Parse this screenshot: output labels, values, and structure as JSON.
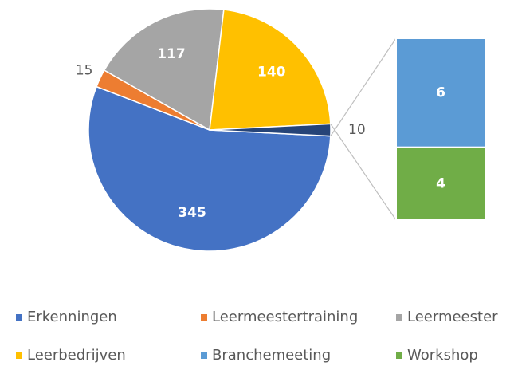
{
  "chart_data": {
    "type": "pie",
    "categories": [
      "Erkenningen",
      "Leermeestertraining",
      "Leermeester",
      "Leerbedrijven",
      null
    ],
    "values": [
      345,
      15,
      117,
      140,
      10
    ],
    "colors": [
      "#4472c4",
      "#ed7d31",
      "#a5a5a5",
      "#ffc000",
      "#264478"
    ],
    "breakdown": {
      "categories": [
        "Branchemeeting",
        "Workshop"
      ],
      "values": [
        6,
        4
      ],
      "colors": [
        "#5b9bd5",
        "#70ad47"
      ]
    }
  }
}
